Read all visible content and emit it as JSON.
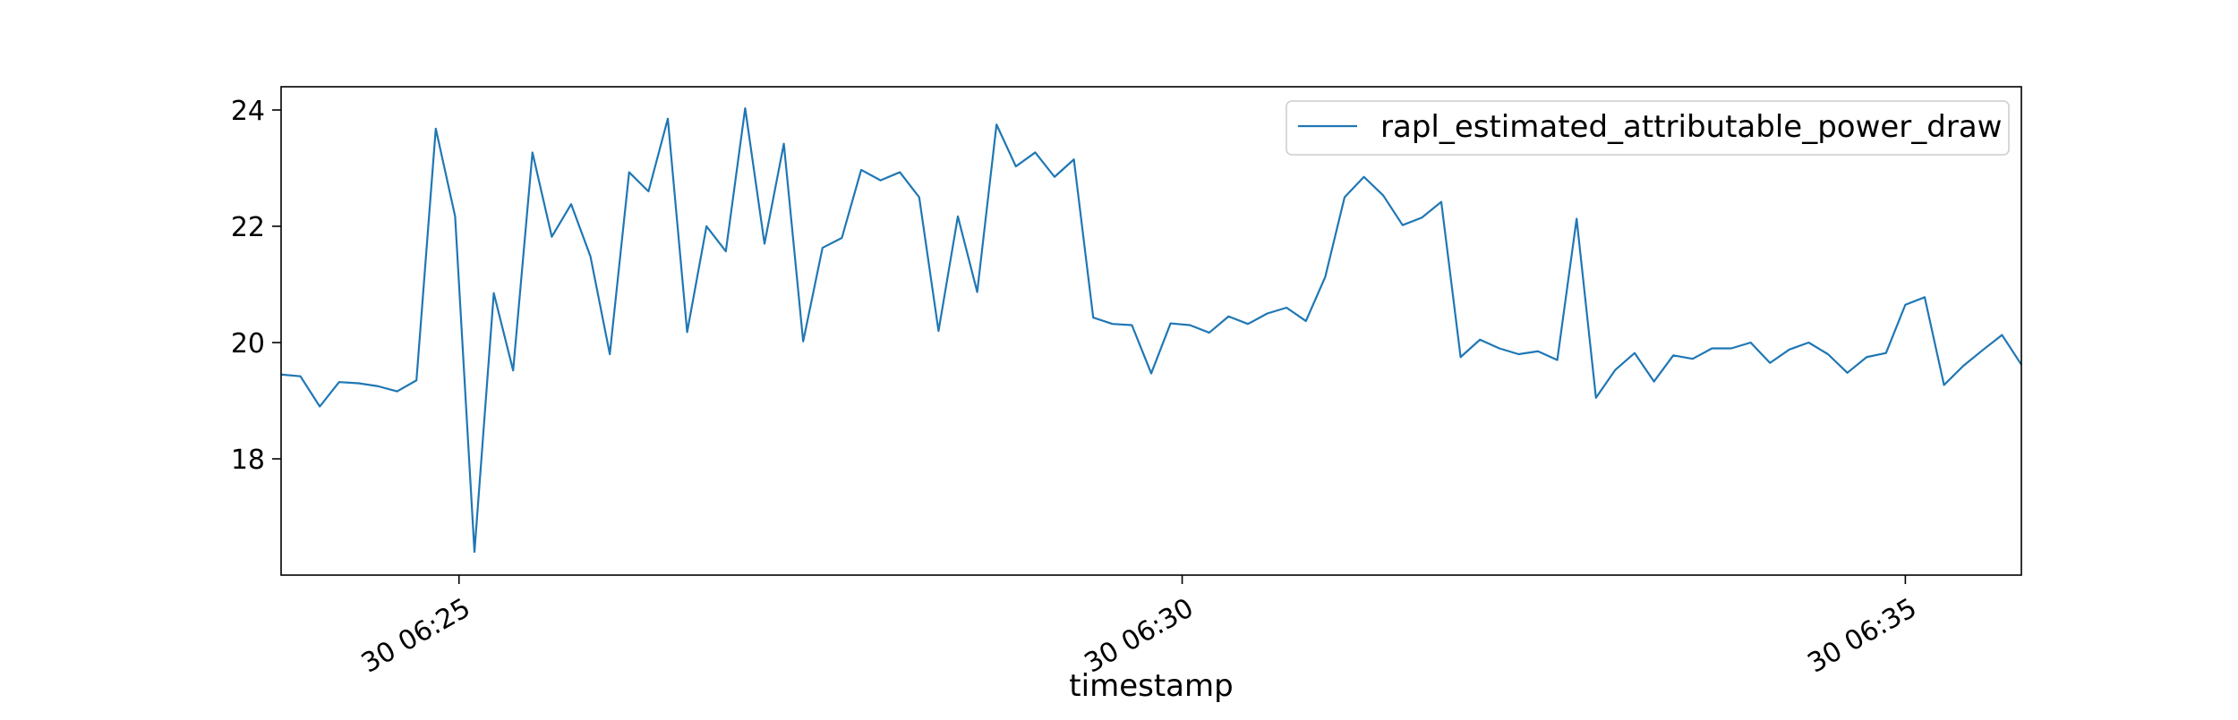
{
  "chart_data": {
    "type": "line",
    "title": "",
    "xlabel": "timestamp",
    "ylabel": "",
    "x_tick_labels": [
      "30 06:25",
      "30 06:30",
      "30 06:35"
    ],
    "y_ticks": [
      18,
      20,
      22,
      24
    ],
    "ylim": [
      16,
      24.4
    ],
    "grid": false,
    "legend": "top-right",
    "series": [
      {
        "name": "rapl_estimated_attributable_power_draw",
        "color": "#1f77b4",
        "values": [
          19.45,
          19.42,
          18.9,
          19.32,
          19.3,
          19.25,
          19.16,
          19.35,
          23.68,
          22.17,
          16.4,
          20.85,
          19.52,
          23.27,
          21.82,
          22.38,
          21.48,
          19.8,
          22.93,
          22.6,
          23.85,
          20.18,
          22.0,
          21.57,
          24.03,
          21.7,
          23.42,
          20.02,
          21.63,
          21.8,
          22.97,
          22.79,
          22.93,
          22.5,
          20.2,
          22.17,
          20.87,
          23.75,
          23.03,
          23.27,
          22.85,
          23.15,
          20.43,
          20.32,
          20.3,
          19.47,
          20.33,
          20.3,
          20.17,
          20.45,
          20.32,
          20.5,
          20.6,
          20.37,
          21.13,
          22.5,
          22.85,
          22.53,
          22.02,
          22.15,
          22.42,
          19.75,
          20.05,
          19.9,
          19.8,
          19.85,
          19.7,
          22.13,
          19.05,
          19.53,
          19.82,
          19.33,
          19.78,
          19.72,
          19.9,
          19.9,
          20.0,
          19.65,
          19.88,
          20.0,
          19.8,
          19.48,
          19.75,
          19.82,
          20.65,
          20.78,
          19.27,
          19.6,
          19.87,
          20.13,
          19.62
        ]
      }
    ]
  }
}
